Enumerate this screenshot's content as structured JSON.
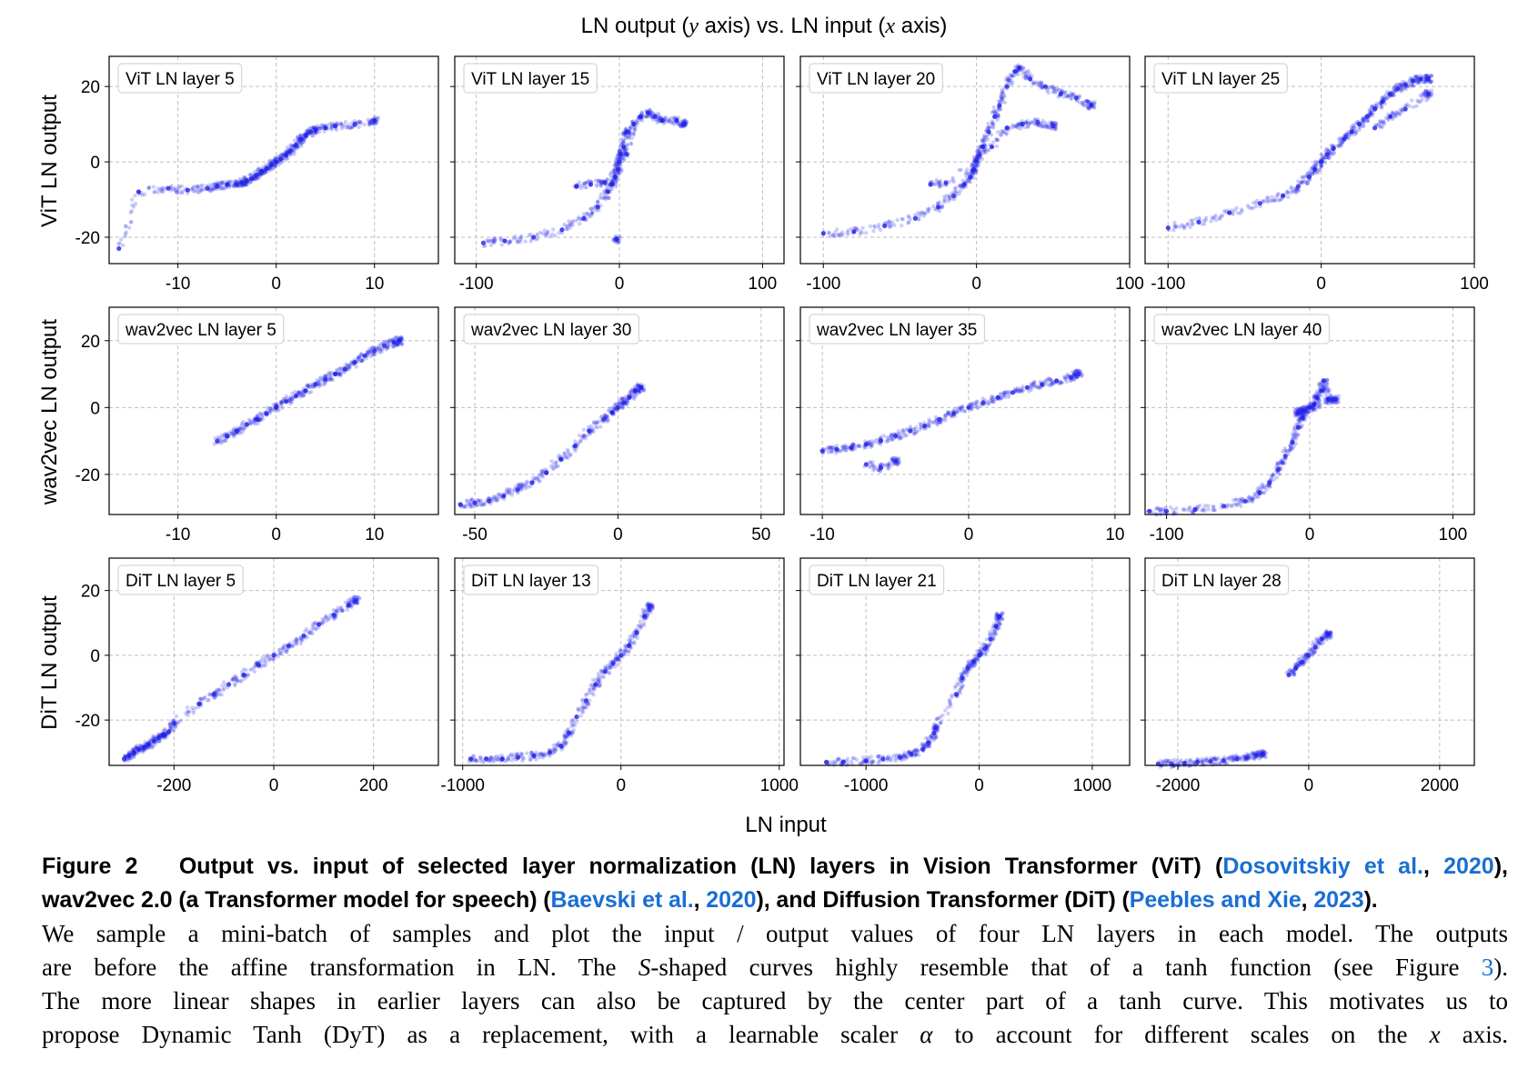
{
  "figure": {
    "title": "LN output (y axis) vs. LN input (x axis)",
    "title_parts": {
      "a": "LN output (",
      "y": "y",
      "b": " axis) vs. LN input (",
      "x": "x",
      "c": " axis)"
    },
    "xlabel": "LN input",
    "point_color": "#1f1fe6",
    "row_labels": [
      "ViT LN output",
      "wav2vec LN output",
      "DiT LN output"
    ]
  },
  "chart_data": [
    {
      "type": "scatter",
      "title": "ViT LN layer 5",
      "xlim": [
        -17,
        16.5
      ],
      "ylim": [
        -27,
        28
      ],
      "xticks": [
        -10,
        0,
        10
      ],
      "yticks": [
        -20,
        0,
        20
      ],
      "xtick_labels": [
        "-10",
        "0",
        "10"
      ],
      "ytick_labels": [
        "-20",
        "0",
        "20"
      ],
      "grid": true,
      "series": [
        {
          "x": [
            -16,
            -14,
            -11,
            -9,
            -7,
            -6,
            -5,
            -4,
            -3.5,
            -3,
            -2.5,
            -2,
            -1.5,
            -1,
            -0.5,
            0,
            0.5,
            1,
            1.5,
            2,
            2.5,
            3,
            3.5,
            4,
            5,
            6,
            8,
            10
          ],
          "y": [
            -23,
            -8,
            -7,
            -7.5,
            -7,
            -6.5,
            -6,
            -6,
            -5.5,
            -5,
            -4.5,
            -3.5,
            -2.5,
            -1.8,
            -0.8,
            0,
            0.8,
            1.8,
            3,
            4.5,
            6,
            7,
            8,
            8.5,
            9,
            9.5,
            10,
            11
          ]
        }
      ]
    },
    {
      "type": "scatter",
      "title": "ViT LN layer 15",
      "xlim": [
        -115,
        115
      ],
      "ylim": [
        -27,
        28
      ],
      "xticks": [
        -100,
        0,
        100
      ],
      "yticks": [
        -20,
        0,
        20
      ],
      "xtick_labels": [
        "-100",
        "0",
        "100"
      ],
      "ytick_labels": [
        "-20",
        "0",
        "20"
      ],
      "grid": true,
      "series": [
        {
          "x": [
            -95,
            -80,
            -60,
            -40,
            -25,
            -15,
            -8,
            -5,
            -3,
            -1,
            0,
            1,
            3,
            5,
            -30,
            -20,
            -10,
            5,
            10,
            15,
            20,
            25,
            30,
            40,
            45,
            -2
          ],
          "y": [
            -21.5,
            -21,
            -20,
            -18,
            -15,
            -12,
            -8,
            -6,
            -4,
            -2,
            0,
            2,
            4,
            8,
            -6.5,
            -6,
            -5.5,
            2,
            10,
            12,
            13,
            12,
            11,
            11,
            10,
            -20.5
          ]
        }
      ]
    },
    {
      "type": "scatter",
      "title": "ViT LN layer 20",
      "xlim": [
        -115,
        100
      ],
      "ylim": [
        -27,
        28
      ],
      "xticks": [
        -100,
        0,
        100
      ],
      "yticks": [
        -20,
        0,
        20
      ],
      "xtick_labels": [
        "-100",
        "0",
        "100"
      ],
      "ytick_labels": [
        "-20",
        "0",
        "20"
      ],
      "grid": true,
      "series": [
        {
          "x": [
            -100,
            -80,
            -60,
            -40,
            -25,
            -15,
            -8,
            -4,
            -2,
            0,
            2,
            4,
            8,
            12,
            15,
            20,
            25,
            28,
            35,
            45,
            55,
            65,
            75,
            -30,
            -20,
            10,
            20,
            30,
            40,
            50
          ],
          "y": [
            -19,
            -18.5,
            -17,
            -15,
            -12,
            -9,
            -6,
            -4,
            -2,
            0,
            2,
            4,
            8,
            12,
            15,
            20,
            24,
            25,
            22,
            20,
            18,
            17,
            15,
            -6,
            -5.5,
            4,
            9,
            10,
            10.5,
            9.5
          ]
        }
      ]
    },
    {
      "type": "scatter",
      "title": "ViT LN layer 25",
      "xlim": [
        -115,
        100
      ],
      "ylim": [
        -27,
        28
      ],
      "xticks": [
        -100,
        0,
        100
      ],
      "yticks": [
        -20,
        0,
        20
      ],
      "xtick_labels": [
        "-100",
        "0",
        "100"
      ],
      "ytick_labels": [
        "-20",
        "0",
        "20"
      ],
      "grid": true,
      "series": [
        {
          "x": [
            -100,
            -80,
            -60,
            -40,
            -25,
            -15,
            -8,
            -4,
            0,
            4,
            8,
            15,
            20,
            25,
            30,
            35,
            40,
            45,
            50,
            55,
            60,
            65,
            70,
            35,
            45,
            55,
            70
          ],
          "y": [
            -17.5,
            -16,
            -13.5,
            -11,
            -9,
            -6.5,
            -4,
            -2,
            0,
            2,
            3.5,
            6,
            8,
            10,
            12,
            14,
            16,
            18,
            19.5,
            20.5,
            21.5,
            22,
            22,
            9,
            12,
            14,
            18
          ]
        }
      ]
    },
    {
      "type": "scatter",
      "title": "wav2vec LN layer 5",
      "xlim": [
        -17,
        16.5
      ],
      "ylim": [
        -32,
        30
      ],
      "xticks": [
        -10,
        0,
        10
      ],
      "yticks": [
        -20,
        0,
        20
      ],
      "xtick_labels": [
        "-10",
        "0",
        "10"
      ],
      "ytick_labels": [
        "-20",
        "0",
        "20"
      ],
      "grid": true,
      "series": [
        {
          "x": [
            -6,
            -5,
            -4,
            -3,
            -2,
            -1,
            0,
            1,
            2,
            3,
            4,
            5,
            6,
            7,
            8,
            9,
            10,
            11,
            12,
            12.5
          ],
          "y": [
            -10,
            -8.5,
            -7,
            -5,
            -3.5,
            -1.8,
            0,
            1.8,
            3.5,
            5,
            7,
            8.5,
            10,
            11.5,
            13.5,
            15.5,
            17,
            18.5,
            19.5,
            20
          ]
        }
      ]
    },
    {
      "type": "scatter",
      "title": "wav2vec LN layer 30",
      "xlim": [
        -57,
        58
      ],
      "ylim": [
        -32,
        30
      ],
      "xticks": [
        -50,
        0,
        50
      ],
      "yticks": [
        -20,
        0,
        20
      ],
      "xtick_labels": [
        "-50",
        "0",
        "50"
      ],
      "ytick_labels": [
        "-20",
        "0",
        "20"
      ],
      "grid": true,
      "series": [
        {
          "x": [
            -55,
            -50,
            -45,
            -40,
            -35,
            -30,
            -25,
            -20,
            -15,
            -10,
            -5,
            -2,
            0,
            2,
            4,
            6,
            8
          ],
          "y": [
            -29,
            -28.5,
            -28,
            -26.5,
            -24.5,
            -22.5,
            -19.5,
            -15.5,
            -11.5,
            -7,
            -3.5,
            -1.5,
            0,
            1.5,
            3,
            5,
            6
          ]
        }
      ]
    },
    {
      "type": "scatter",
      "title": "wav2vec LN layer 35",
      "xlim": [
        -11.5,
        11
      ],
      "ylim": [
        -32,
        30
      ],
      "xticks": [
        -10,
        0,
        10
      ],
      "yticks": [
        -20,
        0,
        20
      ],
      "xtick_labels": [
        "-10",
        "0",
        "10"
      ],
      "ytick_labels": [
        "-20",
        "0",
        "20"
      ],
      "grid": true,
      "series": [
        {
          "x": [
            -10,
            -9,
            -8,
            -7,
            -6,
            -5,
            -4,
            -3,
            -2,
            -1,
            0,
            1,
            2,
            3,
            4,
            5,
            6,
            7,
            7.5,
            -7,
            -6,
            -5
          ],
          "y": [
            -13,
            -12.5,
            -12,
            -11,
            -10,
            -8.5,
            -7,
            -5.5,
            -3.5,
            -1.8,
            0,
            1.5,
            3,
            4.5,
            6,
            7,
            8,
            9,
            10,
            -17,
            -18,
            -16
          ]
        }
      ]
    },
    {
      "type": "scatter",
      "title": "wav2vec LN layer 40",
      "xlim": [
        -115,
        115
      ],
      "ylim": [
        -32,
        30
      ],
      "xticks": [
        -100,
        0,
        100
      ],
      "yticks": [
        -20,
        0,
        20
      ],
      "xtick_labels": [
        "-100",
        "0",
        "100"
      ],
      "ytick_labels": [
        "-20",
        "0",
        "20"
      ],
      "grid": true,
      "series": [
        {
          "x": [
            -112,
            -100,
            -80,
            -60,
            -45,
            -35,
            -28,
            -22,
            -17,
            -12,
            -8,
            -5,
            -3,
            0,
            3,
            5,
            8,
            10,
            13,
            16,
            18,
            -5,
            -8
          ],
          "y": [
            -31,
            -31,
            -30.5,
            -29.5,
            -28,
            -25.5,
            -22.5,
            -18.5,
            -14.5,
            -10.5,
            -6,
            -3,
            -1,
            0,
            1,
            3,
            5,
            8,
            2.5,
            2.5,
            2.5,
            -1,
            -1.5
          ]
        }
      ]
    },
    {
      "type": "scatter",
      "title": "DiT LN layer 5",
      "xlim": [
        -330,
        330
      ],
      "ylim": [
        -34,
        30
      ],
      "xticks": [
        -200,
        0,
        200
      ],
      "yticks": [
        -20,
        0,
        20
      ],
      "xtick_labels": [
        "-200",
        "0",
        "200"
      ],
      "ytick_labels": [
        "-20",
        "0",
        "20"
      ],
      "grid": true,
      "series": [
        {
          "x": [
            -300,
            -290,
            -280,
            -270,
            -260,
            -250,
            -240,
            -230,
            -220,
            -210,
            -200,
            -150,
            -120,
            -90,
            -60,
            -30,
            0,
            30,
            60,
            90,
            120,
            150,
            165
          ],
          "y": [
            -32,
            -31,
            -30,
            -29,
            -28.5,
            -27.5,
            -26.5,
            -25.5,
            -24.5,
            -23.5,
            -21,
            -15,
            -12,
            -9,
            -6,
            -3,
            0,
            3,
            6,
            9.5,
            12.5,
            15.5,
            17
          ]
        }
      ]
    },
    {
      "type": "scatter",
      "title": "DiT LN layer 13",
      "xlim": [
        -1050,
        1030
      ],
      "ylim": [
        -34,
        30
      ],
      "xticks": [
        -1000,
        0,
        1000
      ],
      "yticks": [
        -20,
        0,
        20
      ],
      "xtick_labels": [
        "-1000",
        "0",
        "1000"
      ],
      "ytick_labels": [
        "-20",
        "0",
        "20"
      ],
      "grid": true,
      "series": [
        {
          "x": [
            -950,
            -850,
            -750,
            -650,
            -550,
            -450,
            -380,
            -330,
            -280,
            -220,
            -160,
            -100,
            -50,
            0,
            50,
            100,
            150,
            180
          ],
          "y": [
            -32,
            -32,
            -32,
            -31.5,
            -31,
            -30,
            -28,
            -24,
            -19,
            -14,
            -9,
            -5,
            -2.5,
            0,
            3,
            7,
            12,
            15
          ]
        }
      ]
    },
    {
      "type": "scatter",
      "title": "DiT LN layer 21",
      "xlim": [
        -1580,
        1330
      ],
      "ylim": [
        -34,
        30
      ],
      "xticks": [
        -1000,
        0,
        1000
      ],
      "yticks": [
        -20,
        0,
        20
      ],
      "xtick_labels": [
        "-1000",
        "0",
        "1000"
      ],
      "ytick_labels": [
        "-20",
        "0",
        "20"
      ],
      "grid": true,
      "series": [
        {
          "x": [
            -1350,
            -1200,
            -1000,
            -850,
            -700,
            -600,
            -500,
            -450,
            -400,
            -380,
            -200,
            -150,
            -100,
            -50,
            0,
            50,
            100,
            150,
            180
          ],
          "y": [
            -33,
            -33,
            -32.5,
            -32,
            -31.5,
            -30.5,
            -29,
            -27,
            -24,
            -22,
            -12,
            -7,
            -4,
            -2,
            0,
            2,
            5,
            9,
            12
          ]
        }
      ]
    },
    {
      "type": "scatter",
      "title": "DiT LN layer 28",
      "xlim": [
        -2500,
        2530
      ],
      "ylim": [
        -34,
        30
      ],
      "xticks": [
        -2000,
        0,
        2000
      ],
      "yticks": [
        -20,
        0,
        20
      ],
      "xtick_labels": [
        "-2000",
        "0",
        "2000"
      ],
      "ytick_labels": [
        "-20",
        "0",
        "20"
      ],
      "grid": true,
      "series": [
        {
          "x": [
            -2300,
            -2100,
            -1900,
            -1700,
            -1500,
            -1300,
            -1100,
            -950,
            -800,
            -700,
            -300,
            -200,
            -100,
            0,
            100,
            200,
            300
          ],
          "y": [
            -33.5,
            -33.5,
            -33.3,
            -33,
            -32.8,
            -32.5,
            -32,
            -31.5,
            -31,
            -30.5,
            -6,
            -4,
            -2,
            0,
            2.5,
            5,
            6.5
          ]
        }
      ]
    }
  ],
  "caption": {
    "fig_label": "Figure 2",
    "bold_part1": "Output vs. input of selected layer normalization (LN) layers in Vision Transformer (ViT) (",
    "cite1_name": "Dosovitskiy et al.",
    "cite1_year": "2020",
    "bold_part2": "),",
    "bold_part3": "wav2vec 2.0 (a Transformer model for speech) (",
    "cite2_name": "Baevski et al.",
    "cite2_year": "2020",
    "bold_part4": "), and Diffusion Transformer (DiT) (",
    "cite3_name": "Peebles and Xie",
    "cite3_year": "2023",
    "bold_part5": ").",
    "line3": "We sample a mini-batch of samples and plot the input / output values of four LN layers in each model. The outputs",
    "line4a": "are before the affine transformation in LN. The ",
    "line4_s": "S",
    "line4b": "-shaped curves highly resemble that of a tanh function (see Figure ",
    "line4_ref": "3",
    "line4c": ").",
    "line5": "The more linear shapes in earlier layers can also be captured by the center part of a tanh curve. This motivates us to",
    "line6a": "propose Dynamic Tanh (DyT) as a replacement, with a learnable scaler ",
    "line6_alpha": "α",
    "line6b": " to account for different scales on the ",
    "line6_x": "x",
    "line6c": " axis."
  }
}
